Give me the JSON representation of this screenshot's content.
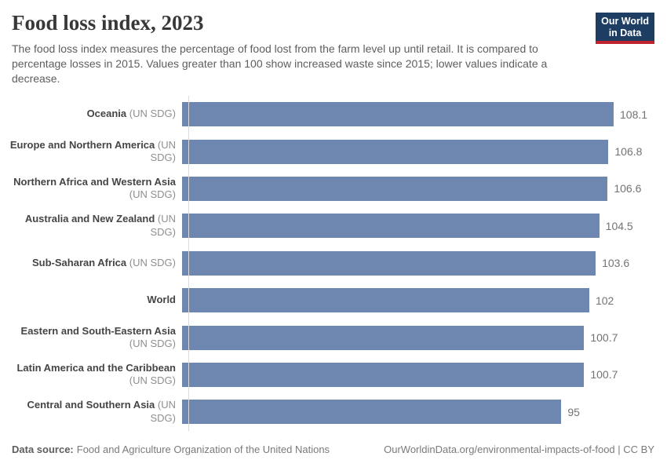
{
  "header": {
    "title": "Food loss index, 2023",
    "subtitle": "The food loss index measures the percentage of food lost from the farm level up until retail. It is compared to percentage losses in 2015. Values greater than 100 show increased waste since 2015; lower values indicate a decrease.",
    "logo": {
      "line1": "Our World",
      "line2": "in Data"
    }
  },
  "chart_data": {
    "type": "bar",
    "orientation": "horizontal",
    "title": "Food loss index, 2023",
    "xlabel": "",
    "ylabel": "",
    "xlim": [
      0,
      108.1
    ],
    "grid": false,
    "value_labels_shown": true,
    "bars": [
      {
        "name": "Oceania",
        "qualifier": "(UN SDG)",
        "value": 108.1,
        "value_label": "108.1"
      },
      {
        "name": "Europe and Northern America",
        "qualifier": "(UN SDG)",
        "value": 106.8,
        "value_label": "106.8"
      },
      {
        "name": "Northern Africa and Western Asia",
        "qualifier": "(UN SDG)",
        "value": 106.6,
        "value_label": "106.6"
      },
      {
        "name": "Australia and New Zealand",
        "qualifier": "(UN SDG)",
        "value": 104.5,
        "value_label": "104.5"
      },
      {
        "name": "Sub-Saharan Africa",
        "qualifier": "(UN SDG)",
        "value": 103.6,
        "value_label": "103.6"
      },
      {
        "name": "World",
        "qualifier": "",
        "value": 102,
        "value_label": "102"
      },
      {
        "name": "Eastern and South-Eastern Asia",
        "qualifier": "(UN SDG)",
        "value": 100.7,
        "value_label": "100.7"
      },
      {
        "name": "Latin America and the Caribbean",
        "qualifier": "(UN SDG)",
        "value": 100.7,
        "value_label": "100.7"
      },
      {
        "name": "Central and Southern Asia",
        "qualifier": "(UN SDG)",
        "value": 95,
        "value_label": "95"
      }
    ]
  },
  "footer": {
    "source_label": "Data source:",
    "source_value": "Food and Agriculture Organization of the United Nations",
    "credit": "OurWorldinData.org/environmental-impacts-of-food | CC BY"
  },
  "colors": {
    "bar": "#6d87b1",
    "axis_line": "#dcdcdc",
    "title_text": "#383838",
    "subtitle_text": "#5e5e5e",
    "label_text": "#454545",
    "qualifier_text": "#8f8f8f",
    "value_text": "#737373",
    "footer_text": "#7a7a7a",
    "logo_background": "#1d3d63",
    "logo_accent": "#c0232e"
  }
}
